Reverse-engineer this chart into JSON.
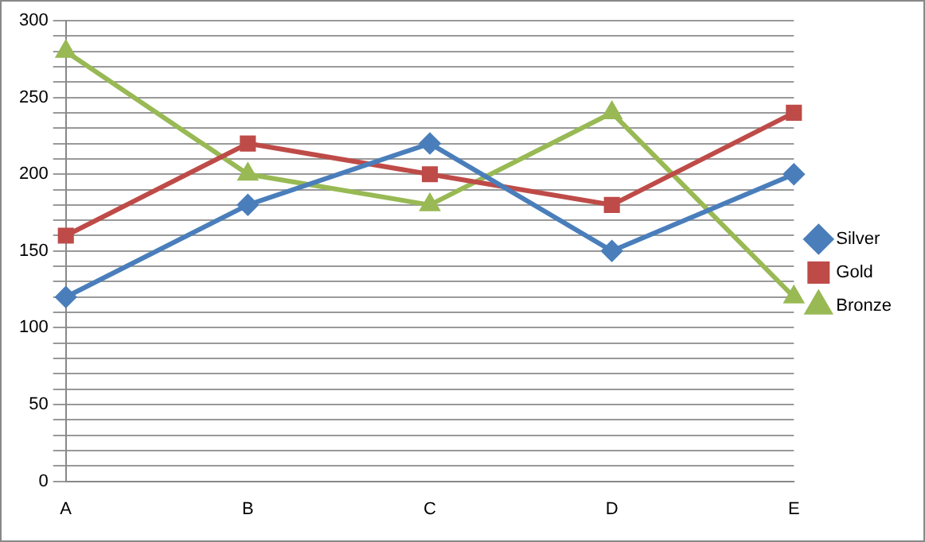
{
  "chart_data": {
    "type": "line",
    "categories": [
      "A",
      "B",
      "C",
      "D",
      "E"
    ],
    "series": [
      {
        "name": "Silver",
        "color": "#4a7ebb",
        "marker": "diamond",
        "values": [
          120,
          180,
          220,
          150,
          200
        ]
      },
      {
        "name": "Gold",
        "color": "#be4b48",
        "marker": "square",
        "values": [
          160,
          220,
          200,
          180,
          240
        ]
      },
      {
        "name": "Bronze",
        "color": "#98b954",
        "marker": "triangle",
        "values": [
          280,
          200,
          180,
          240,
          120
        ]
      }
    ],
    "ylim": [
      0,
      300
    ],
    "yticks": [
      0,
      {
        "value": 10,
        "label": null
      },
      {
        "value": 20,
        "label": null
      },
      {
        "value": 30,
        "label": null
      },
      {
        "value": 40,
        "label": null
      },
      50,
      {
        "value": 60,
        "label": null
      },
      {
        "value": 70,
        "label": null
      },
      {
        "value": 80,
        "label": null
      },
      {
        "value": 90,
        "label": null
      },
      100,
      {
        "value": 110,
        "label": null
      },
      {
        "value": 120,
        "label": null
      },
      {
        "value": 130,
        "label": null
      },
      {
        "value": 140,
        "label": null
      },
      150,
      {
        "value": 160,
        "label": null
      },
      {
        "value": 170,
        "label": null
      },
      {
        "value": 180,
        "label": null
      },
      {
        "value": 190,
        "label": null
      },
      200,
      {
        "value": 210,
        "label": null
      },
      {
        "value": 220,
        "label": null
      },
      {
        "value": 230,
        "label": null
      },
      {
        "value": 240,
        "label": null
      },
      250,
      {
        "value": 260,
        "label": null
      },
      {
        "value": 270,
        "label": null
      },
      {
        "value": 280,
        "label": null
      },
      {
        "value": 290,
        "label": null
      },
      300
    ],
    "grid": "y",
    "legend": "right"
  }
}
